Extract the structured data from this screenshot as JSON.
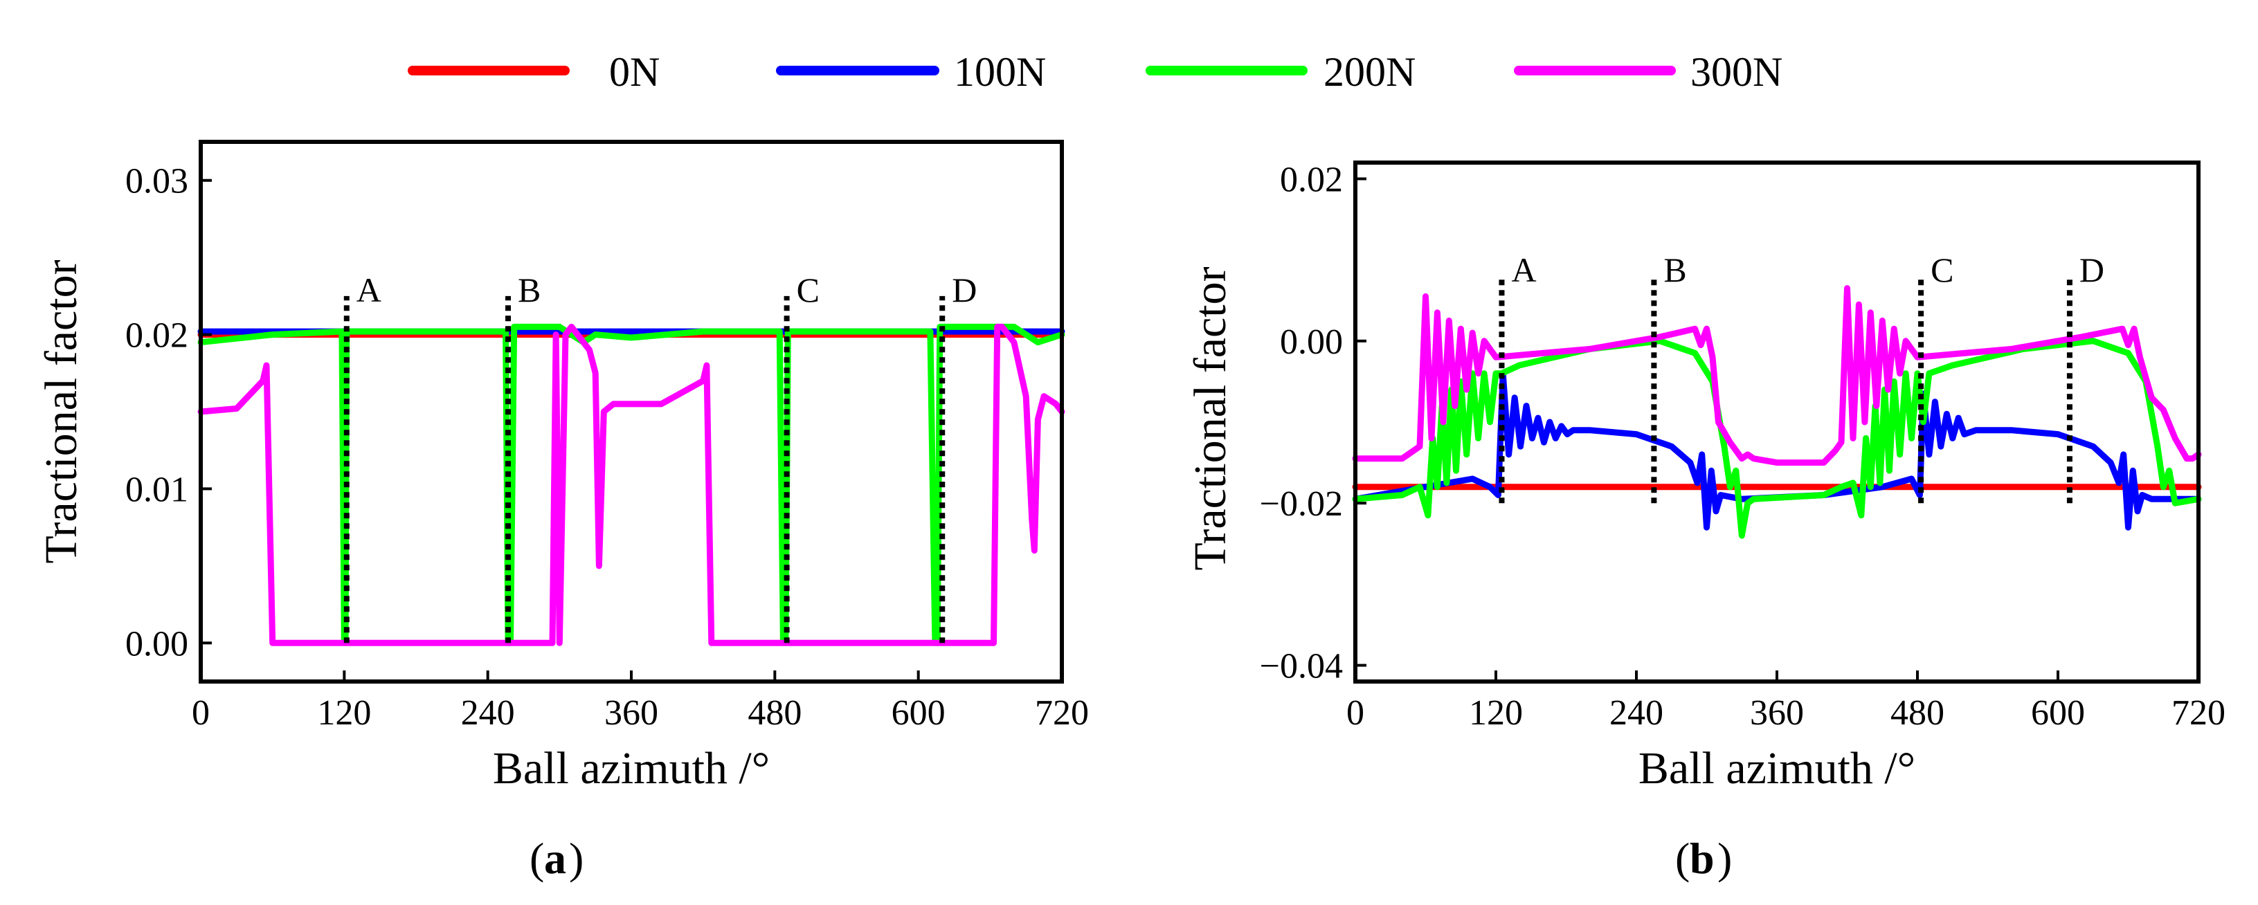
{
  "legend": [
    {
      "name": "0N",
      "color": "#ff0000"
    },
    {
      "name": "100N",
      "color": "#0000ff"
    },
    {
      "name": "200N",
      "color": "#00ff00"
    },
    {
      "name": "300N",
      "color": "#ff00ff"
    }
  ],
  "chart_data": [
    {
      "type": "line",
      "panel_label": "a",
      "title": "",
      "xlabel": "Ball azimuth /°",
      "ylabel": "Tractional factor",
      "xlim": [
        0,
        720
      ],
      "ylim": [
        -0.0025,
        0.0325
      ],
      "xticks": [
        0,
        120,
        240,
        360,
        480,
        600,
        720
      ],
      "yticks": [
        0.0,
        0.01,
        0.02,
        0.03
      ],
      "ytick_labels": [
        "0.00",
        "0.01",
        "0.02",
        "0.03"
      ],
      "markers": [
        {
          "label": "A",
          "x": 122,
          "y0": 0.0,
          "y1": 0.0225
        },
        {
          "label": "B",
          "x": 257,
          "y0": 0.0,
          "y1": 0.0225
        },
        {
          "label": "C",
          "x": 490,
          "y0": 0.0,
          "y1": 0.0225
        },
        {
          "label": "D",
          "x": 620,
          "y0": 0.0,
          "y1": 0.0225
        }
      ],
      "series": [
        {
          "name": "0N",
          "color": "#ff0000",
          "x": [
            0,
            720
          ],
          "y": [
            0.02,
            0.02
          ]
        },
        {
          "name": "100N",
          "color": "#0000ff",
          "x": [
            0,
            720
          ],
          "y": [
            0.0202,
            0.0202
          ]
        },
        {
          "name": "200N",
          "color": "#00ff00",
          "x": [
            0,
            60,
            118,
            120,
            121,
            122,
            255,
            257,
            259,
            262,
            300,
            320,
            330,
            360,
            420,
            484,
            487,
            489,
            491,
            610,
            614,
            616,
            618,
            680,
            700,
            720
          ],
          "y": [
            0.0195,
            0.02,
            0.0202,
            0.0,
            0.0,
            0.0202,
            0.0202,
            0.0,
            0.0,
            0.0205,
            0.0205,
            0.0195,
            0.02,
            0.0198,
            0.0202,
            0.0202,
            0.0,
            0.0,
            0.0202,
            0.0202,
            0.0,
            0.0,
            0.0205,
            0.0205,
            0.0195,
            0.02
          ]
        },
        {
          "name": "300N",
          "color": "#ff00ff",
          "x": [
            0,
            30,
            52,
            55,
            60,
            294,
            297,
            300,
            305,
            310,
            315,
            320,
            325,
            330,
            333,
            337,
            345,
            385,
            420,
            423,
            427,
            430,
            663,
            666,
            670,
            680,
            690,
            695,
            697,
            700,
            705,
            715,
            720
          ],
          "y": [
            0.015,
            0.0152,
            0.017,
            0.018,
            0.0,
            0.0,
            0.02,
            0.0,
            0.02,
            0.0205,
            0.02,
            0.0195,
            0.019,
            0.0175,
            0.005,
            0.015,
            0.0155,
            0.0155,
            0.017,
            0.018,
            0.0,
            0.0,
            0.0,
            0.0205,
            0.0205,
            0.0195,
            0.016,
            0.008,
            0.006,
            0.0145,
            0.016,
            0.0155,
            0.015
          ]
        }
      ]
    },
    {
      "type": "line",
      "panel_label": "b",
      "title": "",
      "xlabel": "Ball azimuth /°",
      "ylabel": "Tractional factor",
      "xlim": [
        0,
        720
      ],
      "ylim": [
        -0.042,
        0.022
      ],
      "xticks": [
        0,
        120,
        240,
        360,
        480,
        600,
        720
      ],
      "yticks": [
        -0.04,
        -0.02,
        0.0,
        0.02
      ],
      "ytick_labels": [
        "−0.04",
        "−0.02",
        "0.00",
        "0.02"
      ],
      "markers": [
        {
          "label": "A",
          "x": 125,
          "y0": -0.02,
          "y1": 0.008
        },
        {
          "label": "B",
          "x": 255,
          "y0": -0.02,
          "y1": 0.008
        },
        {
          "label": "C",
          "x": 483,
          "y0": -0.02,
          "y1": 0.008
        },
        {
          "label": "D",
          "x": 610,
          "y0": -0.02,
          "y1": 0.008
        }
      ],
      "series": [
        {
          "name": "0N",
          "color": "#ff0000",
          "x": [
            0,
            720
          ],
          "y": [
            -0.018,
            -0.018
          ]
        },
        {
          "name": "100N",
          "color": "#0000ff",
          "x": [
            0,
            100,
            115,
            122,
            126,
            131,
            136,
            141,
            146,
            151,
            156,
            161,
            166,
            171,
            176,
            181,
            186,
            200,
            240,
            270,
            286,
            292,
            296,
            300,
            304,
            308,
            312,
            330,
            400,
            450,
            475,
            482,
            485,
            490,
            495,
            500,
            505,
            510,
            515,
            520,
            530,
            560,
            600,
            630,
            645,
            652,
            656,
            660,
            664,
            668,
            672,
            680,
            720
          ],
          "y": [
            -0.0195,
            -0.017,
            -0.018,
            -0.019,
            -0.004,
            -0.014,
            -0.007,
            -0.013,
            -0.008,
            -0.012,
            -0.0095,
            -0.0125,
            -0.01,
            -0.012,
            -0.0105,
            -0.0115,
            -0.011,
            -0.011,
            -0.0115,
            -0.013,
            -0.015,
            -0.0175,
            -0.014,
            -0.023,
            -0.016,
            -0.021,
            -0.019,
            -0.0195,
            -0.019,
            -0.018,
            -0.017,
            -0.019,
            -0.0065,
            -0.014,
            -0.0075,
            -0.013,
            -0.009,
            -0.012,
            -0.0095,
            -0.0115,
            -0.011,
            -0.011,
            -0.0115,
            -0.013,
            -0.015,
            -0.0175,
            -0.014,
            -0.023,
            -0.016,
            -0.021,
            -0.019,
            -0.0195,
            -0.0195
          ]
        },
        {
          "name": "200N",
          "color": "#00ff00",
          "x": [
            0,
            40,
            55,
            62,
            66,
            70,
            74,
            78,
            82,
            86,
            90,
            95,
            100,
            105,
            110,
            115,
            120,
            125,
            140,
            200,
            260,
            290,
            305,
            315,
            320,
            325,
            330,
            335,
            340,
            400,
            415,
            425,
            432,
            436,
            440,
            444,
            448,
            452,
            456,
            460,
            465,
            470,
            475,
            480,
            485,
            490,
            510,
            570,
            630,
            660,
            675,
            685,
            690,
            695,
            700,
            720
          ],
          "y": [
            -0.0195,
            -0.019,
            -0.018,
            -0.0215,
            -0.012,
            -0.018,
            -0.008,
            -0.0175,
            -0.006,
            -0.016,
            -0.005,
            -0.014,
            -0.004,
            -0.012,
            -0.004,
            -0.01,
            -0.004,
            -0.004,
            -0.003,
            -0.001,
            0.0,
            -0.0015,
            -0.005,
            -0.013,
            -0.018,
            -0.016,
            -0.024,
            -0.02,
            -0.0195,
            -0.019,
            -0.018,
            -0.0175,
            -0.0215,
            -0.012,
            -0.018,
            -0.008,
            -0.0175,
            -0.006,
            -0.016,
            -0.005,
            -0.014,
            -0.004,
            -0.012,
            -0.004,
            -0.01,
            -0.004,
            -0.003,
            -0.001,
            0.0,
            -0.0015,
            -0.005,
            -0.013,
            -0.018,
            -0.016,
            -0.02,
            -0.0195
          ]
        },
        {
          "name": "300N",
          "color": "#ff00ff",
          "x": [
            0,
            40,
            55,
            60,
            65,
            70,
            75,
            80,
            85,
            90,
            95,
            100,
            105,
            110,
            120,
            160,
            200,
            240,
            260,
            290,
            295,
            300,
            305,
            310,
            320,
            330,
            335,
            340,
            360,
            400,
            410,
            415,
            420,
            425,
            430,
            435,
            440,
            445,
            450,
            455,
            460,
            465,
            470,
            480,
            520,
            560,
            600,
            620,
            655,
            660,
            665,
            670,
            680,
            690,
            700,
            710,
            715,
            720
          ],
          "y": [
            -0.0145,
            -0.0145,
            -0.013,
            0.0055,
            -0.012,
            0.0035,
            -0.01,
            0.0025,
            -0.008,
            0.0015,
            -0.006,
            0.001,
            -0.004,
            0.0,
            -0.002,
            -0.0015,
            -0.001,
            0.0,
            0.0005,
            0.0015,
            -0.0005,
            0.0015,
            -0.002,
            -0.01,
            -0.0125,
            -0.0145,
            -0.014,
            -0.0145,
            -0.015,
            -0.015,
            -0.0135,
            -0.0125,
            0.0065,
            -0.012,
            0.0045,
            -0.01,
            0.0035,
            -0.008,
            0.0025,
            -0.006,
            0.0015,
            -0.004,
            0.0,
            -0.002,
            -0.0015,
            -0.001,
            0.0,
            0.0005,
            0.0015,
            -0.0005,
            0.0015,
            -0.002,
            -0.007,
            -0.0085,
            -0.012,
            -0.0145,
            -0.0145,
            -0.014
          ]
        }
      ]
    }
  ]
}
